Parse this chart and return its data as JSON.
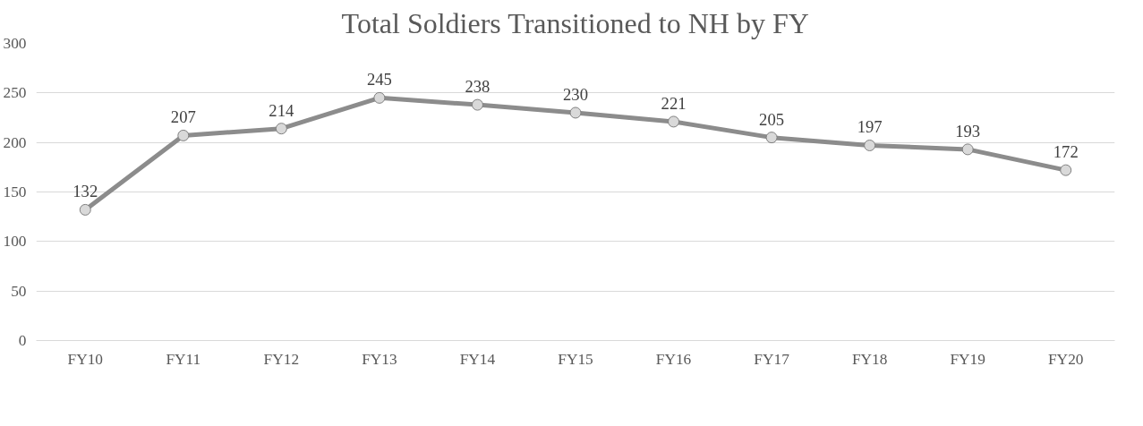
{
  "chart_data": {
    "type": "line",
    "title": "Total Soldiers Transitioned to NH by FY",
    "categories": [
      "FY10",
      "FY11",
      "FY12",
      "FY13",
      "FY14",
      "FY15",
      "FY16",
      "FY17",
      "FY18",
      "FY19",
      "FY20"
    ],
    "series": [
      {
        "color": "#8c8c8c",
        "values": [
          132,
          207,
          214,
          245,
          238,
          230,
          221,
          205,
          197,
          193,
          172
        ]
      }
    ],
    "ylim": [
      0,
      300
    ],
    "yticks": [
      0,
      50,
      100,
      150,
      200,
      250,
      300
    ],
    "grid": "y",
    "marker": "circle",
    "line_style": "solid",
    "data_labels": true
  }
}
